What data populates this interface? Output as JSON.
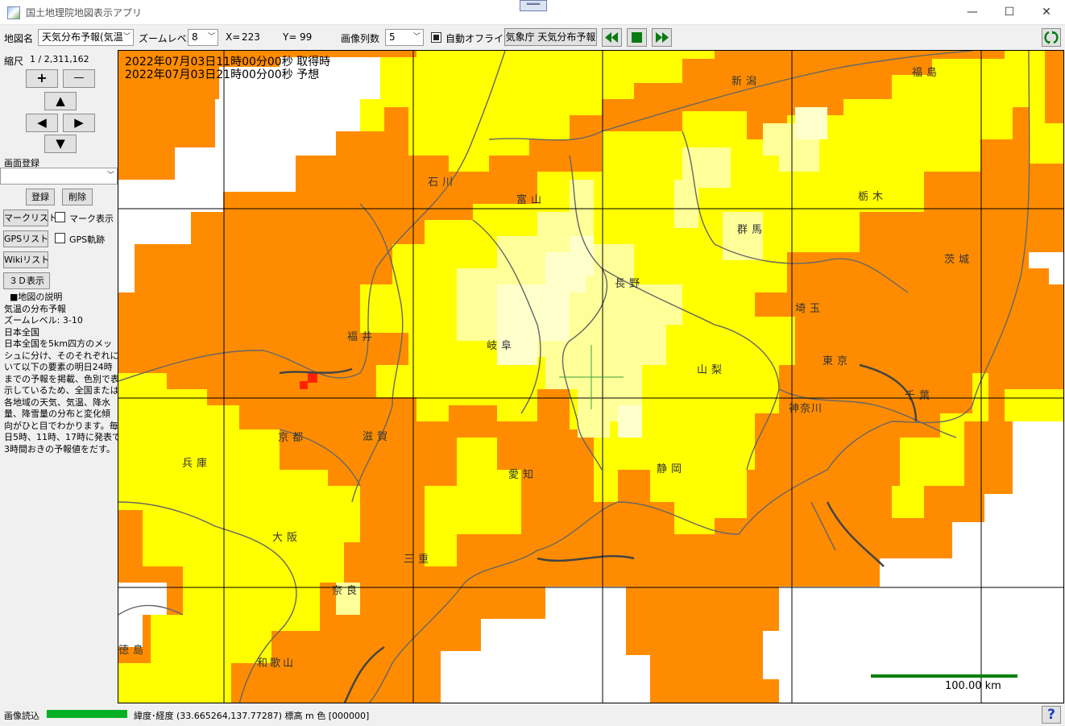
{
  "window": {
    "title": "国土地理院地図表示アプリ",
    "drag_handle": "═══",
    "minimize": "—",
    "maximize": "☐",
    "close": "✕"
  },
  "toolbar": {
    "map_name_label": "地図名",
    "map_name_value": "天気分布予報(気温",
    "zoom_label": "ズームレベル",
    "zoom_value": "8",
    "x_label": "X=",
    "x_value": "223",
    "y_label": "Y=",
    "y_value": "99",
    "columns_label": "画像列数",
    "columns_value": "5",
    "auto_offline_label": "自動オフライン",
    "auto_offline_checked": true,
    "source_button": "気象庁 天気分布予報",
    "rewind_icon": "fast-rewind-icon",
    "stop_icon": "stop-icon",
    "forward_icon": "fast-forward-icon",
    "refresh_icon": "refresh-icon"
  },
  "left": {
    "scale_label": "縮尺",
    "scale_value": "1 / 2,311,162",
    "zoom_in": "+",
    "zoom_out": "—",
    "pan_up": "▲",
    "pan_left": "◀",
    "pan_right": "▶",
    "pan_down": "▼",
    "screen_register_label": "画面登録",
    "register_button": "登録",
    "delete_button": "削除",
    "mark_list_button": "マークリスト",
    "mark_display_label": "マーク表示",
    "gps_list_button": "GPSリスト",
    "gps_track_label": "GPS軌跡",
    "wiki_list_button": "Wikiリスト",
    "view3d_button": "３Ｄ表示",
    "description": [
      "  ■地図の説明",
      "気温の分布予報",
      "ズームレベル: 3-10",
      "日本全国",
      "日本全国を5km四方のメッ",
      "シュに分け、そのそれぞれにつ",
      "いて以下の要素の明日24時",
      "までの予報を掲載、色別で表",
      "示しているため、全国または",
      "各地域の天気、気温、降水",
      "量、降雪量の分布と変化傾",
      "向がひと目でわかります。毎",
      "日5時、11時、17時に発表で",
      "3時間おきの予報値をだす。"
    ]
  },
  "map": {
    "acquired_time": "2022年07月03日11時00分00秒 取得時",
    "forecast_time": "2022年07月03日21時00分00秒 予想",
    "prefectures": {
      "niigata": "新潟",
      "fukushima": "福島",
      "ishikawa": "石川",
      "toyama": "富山",
      "tochigi": "栃木",
      "gunma": "群馬",
      "ibaraki": "茨城",
      "nagano": "長野",
      "saitama": "埼玉",
      "fukui": "福井",
      "gifu": "岐阜",
      "yamanashi": "山梨",
      "tokyo": "東京",
      "chiba": "千葉",
      "kanagawa": "神奈川",
      "kyoto": "京都",
      "shiga": "滋賀",
      "hyogo": "兵庫",
      "aichi": "愛知",
      "shizuoka": "静岡",
      "osaka": "大阪",
      "mie": "三重",
      "nara": "奈良",
      "tokushima": "徳島",
      "wakayama": "和歌山"
    },
    "scale_text": "100.00 km",
    "colors": {
      "orange": "#ff8c00",
      "yellow": "#ffff00",
      "light_yellow": "#ffff99",
      "pale": "#ffffcc",
      "red": "#ff2200",
      "sea": "#ffffff"
    }
  },
  "status": {
    "loading_label": "画像読込",
    "progress": 1.0,
    "coords_text": "緯度･経度 (33.665264,137.77287) 標高  m 色 [000000]",
    "help_icon": "help-icon",
    "help_text": "?"
  }
}
